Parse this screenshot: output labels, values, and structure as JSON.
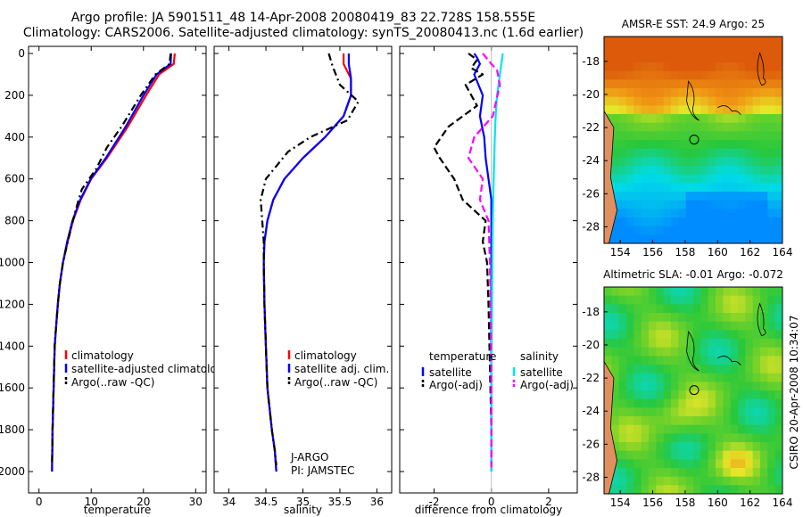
{
  "header": {
    "line1": "Argo profile: JA 5901511_48 14-Apr-2008 20080419_83 22.728S 158.555E",
    "line2": "Climatology: CARS2006. Satellite-adjusted climatology: synTS_20080413.nc (1.6d earlier)"
  },
  "side_label": "CSIRO 20-Apr-2008 10:34:07",
  "colors": {
    "climatology": "#ff0000",
    "satellite": "#0000ff",
    "argo": "#000000",
    "salinity_satellite": "#00e5ee",
    "salinity_argo": "#ff00ff",
    "land": "#e09060"
  },
  "chart_data": [
    {
      "type": "line",
      "title": "",
      "xlabel": "temperature",
      "ylabel": "",
      "xlim": [
        -2,
        32
      ],
      "ylim": [
        2000,
        0
      ],
      "xticks": [
        0,
        10,
        20,
        30
      ],
      "yticks": [
        0,
        200,
        400,
        600,
        800,
        1000,
        1200,
        1400,
        1600,
        1800,
        2000
      ],
      "legend": [
        "climatology",
        "satellite-adjusted climatology",
        "Argo(..raw -QC)"
      ],
      "series": [
        {
          "name": "climatology",
          "x": [
            26,
            25.8,
            23,
            20.5,
            17,
            13,
            10,
            8,
            6.5,
            5.5,
            4.6,
            4,
            3.6,
            3.3,
            3,
            2.8,
            2.6,
            2.5
          ],
          "y": [
            0,
            50,
            100,
            200,
            350,
            500,
            600,
            700,
            800,
            900,
            1000,
            1100,
            1200,
            1300,
            1400,
            1600,
            1800,
            2000
          ]
        },
        {
          "name": "satellite-adjusted climatology",
          "x": [
            25.3,
            25.2,
            22.5,
            20,
            16.6,
            12.8,
            9.9,
            7.9,
            6.4,
            5.4,
            4.6,
            4,
            3.6,
            3.3,
            3,
            2.8,
            2.6,
            2.5
          ],
          "y": [
            0,
            50,
            100,
            200,
            350,
            500,
            600,
            700,
            800,
            900,
            1000,
            1100,
            1200,
            1300,
            1400,
            1600,
            1800,
            2000
          ]
        },
        {
          "name": "Argo(..raw -QC)",
          "x": [
            25.2,
            25,
            22.3,
            19.5,
            15.8,
            13,
            11,
            8.2,
            7,
            5.5,
            4.6,
            4,
            3.6,
            3.3,
            3,
            2.8,
            2.6,
            2.5
          ],
          "y": [
            0,
            50,
            100,
            200,
            350,
            450,
            550,
            650,
            750,
            900,
            1000,
            1100,
            1200,
            1300,
            1400,
            1600,
            1800,
            1970
          ]
        }
      ]
    },
    {
      "type": "line",
      "title": "",
      "xlabel": "salinity",
      "ylabel": "",
      "xlim": [
        33.8,
        36.2
      ],
      "ylim": [
        2000,
        0
      ],
      "xticks": [
        34,
        34.5,
        35,
        35.5,
        36
      ],
      "annotations": [
        "J-ARGO",
        "PI: JAMSTEC"
      ],
      "legend": [
        "climatology",
        "satellite adj. clim.",
        "Argo(..raw -QC)"
      ],
      "series": [
        {
          "name": "climatology",
          "x": [
            35.55,
            35.55,
            35.65,
            35.65,
            35.55,
            35.3,
            35,
            34.75,
            34.6,
            34.52,
            34.48,
            34.47,
            34.48,
            34.5,
            34.52,
            34.55,
            34.58,
            34.62,
            34.64
          ],
          "y": [
            0,
            50,
            120,
            200,
            300,
            400,
            500,
            600,
            700,
            800,
            900,
            1000,
            1200,
            1400,
            1600,
            1700,
            1800,
            1900,
            2000
          ]
        },
        {
          "name": "satellite adj. clim.",
          "x": [
            35.62,
            35.62,
            35.65,
            35.65,
            35.55,
            35.3,
            35,
            34.75,
            34.6,
            34.52,
            34.48,
            34.47,
            34.48,
            34.5,
            34.52,
            34.55,
            34.58,
            34.62,
            34.64
          ],
          "y": [
            0,
            50,
            120,
            200,
            300,
            400,
            500,
            600,
            700,
            800,
            900,
            1000,
            1200,
            1400,
            1600,
            1700,
            1800,
            1900,
            2000
          ]
        },
        {
          "name": "Argo(..raw -QC)",
          "x": [
            35.35,
            35.4,
            35.5,
            35.75,
            35.6,
            35.1,
            34.8,
            34.5,
            34.43,
            34.45,
            34.47,
            34.47,
            34.48,
            34.5,
            34.52,
            34.55,
            34.58,
            34.62,
            34.64
          ],
          "y": [
            0,
            60,
            150,
            230,
            320,
            400,
            470,
            600,
            700,
            800,
            900,
            1000,
            1200,
            1400,
            1600,
            1700,
            1800,
            1900,
            1970
          ]
        }
      ]
    },
    {
      "type": "line",
      "title": "",
      "xlabel": "difference from climatology",
      "ylabel": "",
      "xlim": [
        -3.2,
        3.0
      ],
      "ylim": [
        2000,
        0
      ],
      "xticks": [
        -2,
        0,
        2
      ],
      "legend": [
        "temperature",
        "satellite",
        "Argo(-adj)",
        "salinity",
        "satellite",
        "Argo(-adj)"
      ],
      "series": [
        {
          "name": "temperature satellite",
          "x": [
            -0.6,
            -0.5,
            -0.4,
            -0.6,
            -0.3,
            -0.4,
            -0.25,
            -0.2,
            -0.1,
            0,
            0,
            0,
            0,
            0,
            0,
            0
          ],
          "y": [
            0,
            20,
            50,
            100,
            200,
            300,
            400,
            500,
            600,
            700,
            800,
            1000,
            1200,
            1400,
            1800,
            2000
          ]
        },
        {
          "name": "temperature Argo(-adj)",
          "x": [
            -0.8,
            -0.5,
            -0.7,
            -0.3,
            -0.9,
            -0.5,
            -1.5,
            -2,
            -1.8,
            -1.3,
            -1,
            -0.2,
            -0.3,
            -0.15,
            -0.1,
            -0.05,
            0,
            0
          ],
          "y": [
            0,
            30,
            70,
            100,
            150,
            250,
            350,
            450,
            500,
            600,
            700,
            800,
            900,
            1000,
            1200,
            1500,
            1800,
            1980
          ]
        },
        {
          "name": "salinity satellite",
          "x": [
            0.4,
            0.35,
            0.3,
            0.2,
            0.15,
            0.12,
            0.08,
            0.05,
            0.02,
            0,
            0
          ],
          "y": [
            0,
            50,
            100,
            200,
            300,
            400,
            600,
            800,
            1200,
            1600,
            2000
          ]
        },
        {
          "name": "salinity Argo(-adj)",
          "x": [
            -0.3,
            0,
            0.2,
            0.3,
            0.05,
            -0.6,
            -0.8,
            -0.3,
            -0.4,
            -0.1,
            -0.05,
            0,
            0
          ],
          "y": [
            0,
            50,
            80,
            150,
            300,
            400,
            500,
            600,
            700,
            800,
            1000,
            1500,
            1980
          ]
        }
      ]
    },
    {
      "type": "heatmap",
      "title": "AMSR-E SST: 24.9 Argo: 25",
      "xticks": [
        154,
        156,
        158,
        160,
        162,
        164
      ],
      "yticks": [
        -18,
        -20,
        -22,
        -24,
        -26,
        -28
      ],
      "xlim": [
        153,
        164
      ],
      "ylim": [
        -29,
        -16.5
      ],
      "marker": {
        "lon": 158.555,
        "lat": -22.728
      }
    },
    {
      "type": "heatmap",
      "title": "Altimetric SLA: -0.01 Argo: -0.072",
      "xticks": [
        154,
        156,
        158,
        160,
        162,
        164
      ],
      "yticks": [
        -18,
        -20,
        -22,
        -24,
        -26,
        -28
      ],
      "xlim": [
        153,
        164
      ],
      "ylim": [
        -29,
        -16.5
      ],
      "marker": {
        "lon": 158.555,
        "lat": -22.728
      }
    }
  ]
}
